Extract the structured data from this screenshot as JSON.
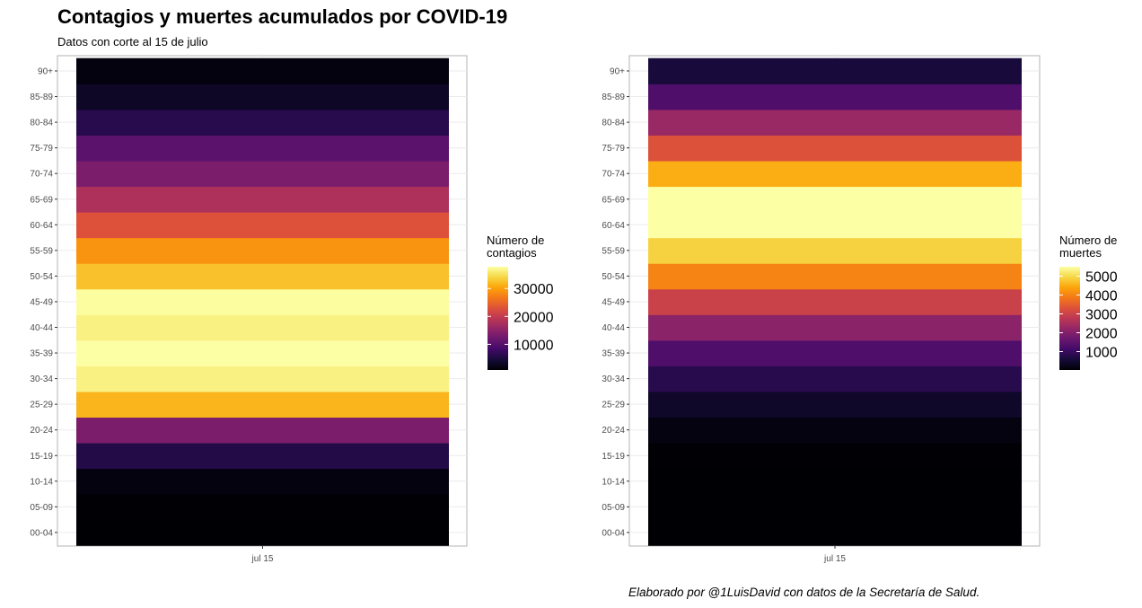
{
  "title": "Contagios y muertes acumulados por COVID-19",
  "subtitle": "Datos con corte al 15 de julio",
  "caption": "Elaborado por @1LuisDavid con datos de la Secretaría de Salud.",
  "chart_data": [
    {
      "type": "heatmap",
      "x_categories": [
        "jul 15"
      ],
      "y_categories": [
        "00-04",
        "05-09",
        "10-14",
        "15-19",
        "20-24",
        "25-29",
        "30-34",
        "35-39",
        "40-44",
        "45-49",
        "50-54",
        "55-59",
        "60-64",
        "65-69",
        "70-74",
        "75-79",
        "80-84",
        "85-89",
        "90+"
      ],
      "values": [
        800,
        900,
        1500,
        5500,
        13500,
        31500,
        36500,
        37800,
        36500,
        37600,
        32500,
        29000,
        23000,
        18000,
        13500,
        10500,
        6000,
        3200,
        1500
      ],
      "legend_title": "Número de\ncontagios",
      "legend_breaks": [
        10000,
        20000,
        30000
      ],
      "legend_breaks_labels": [
        "10000",
        "20000",
        "30000"
      ],
      "color_range": [
        800,
        37800
      ],
      "colormap": "inferno",
      "grid": true
    },
    {
      "type": "heatmap",
      "x_categories": [
        "jul 15"
      ],
      "y_categories": [
        "00-04",
        "05-09",
        "10-14",
        "15-19",
        "20-24",
        "25-29",
        "30-34",
        "35-39",
        "40-44",
        "45-49",
        "50-54",
        "55-59",
        "60-64",
        "65-69",
        "70-74",
        "75-79",
        "80-84",
        "85-89",
        "90+"
      ],
      "values": [
        30,
        25,
        25,
        40,
        150,
        400,
        800,
        1300,
        2100,
        3000,
        4000,
        4900,
        5500,
        5500,
        4500,
        3300,
        2300,
        1300,
        600
      ],
      "legend_title": "Número de\nmuertes",
      "legend_breaks": [
        1000,
        2000,
        3000,
        4000,
        5000
      ],
      "legend_breaks_labels": [
        "1000",
        "2000",
        "3000",
        "4000",
        "5000"
      ],
      "color_range": [
        25,
        5500
      ],
      "colormap": "inferno",
      "grid": true
    }
  ]
}
